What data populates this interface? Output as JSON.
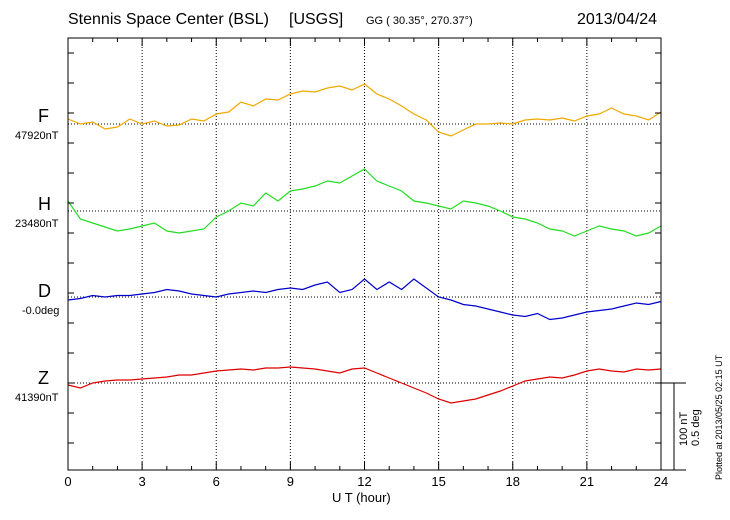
{
  "header": {
    "station": "Stennis Space Center (BSL)",
    "network": "[USGS]",
    "coords": "GG ( 30.35°, 270.37°)",
    "date": "2013/04/24"
  },
  "plotted_at": "Plotted at 2013/05/25 02:15 UT",
  "scale": {
    "line1": "100 nT",
    "line2": "0.5 deg"
  },
  "colors": {
    "F": "#f0a800",
    "H": "#22dd22",
    "D": "#0000cc",
    "Z": "#dd0000"
  },
  "chart_data": {
    "type": "line",
    "xlabel": "U T (hour)",
    "xlim": [
      0,
      24
    ],
    "xticks": [
      "0",
      "3",
      "6",
      "9",
      "12",
      "15",
      "18",
      "21",
      "24"
    ],
    "grid": true,
    "scale_bar": "100 nT / 0.5 deg",
    "series": [
      {
        "name": "F",
        "baseline_label": "47920nT",
        "x": [
          0,
          0.5,
          1,
          1.5,
          2,
          2.5,
          3,
          3.5,
          4,
          4.5,
          5,
          5.5,
          6,
          6.5,
          7,
          7.5,
          8,
          8.5,
          9,
          9.5,
          10,
          10.5,
          11,
          11.5,
          12,
          12.5,
          13,
          13.5,
          14,
          14.5,
          15,
          15.5,
          16,
          16.5,
          17,
          17.5,
          18,
          18.5,
          19,
          19.5,
          20,
          20.5,
          21,
          21.5,
          22,
          22.5,
          23,
          23.5,
          24
        ],
        "y": [
          5,
          0,
          2,
          -5,
          -3,
          5,
          0,
          3,
          -2,
          -1,
          5,
          3,
          10,
          12,
          22,
          18,
          25,
          24,
          30,
          33,
          32,
          36,
          38,
          34,
          40,
          30,
          25,
          18,
          10,
          4,
          -8,
          -12,
          -6,
          0,
          0,
          1,
          0,
          4,
          5,
          4,
          6,
          3,
          8,
          10,
          16,
          10,
          8,
          4,
          12
        ]
      },
      {
        "name": "H",
        "baseline_label": "23480nT",
        "x": [
          0,
          0.5,
          1,
          1.5,
          2,
          2.5,
          3,
          3.5,
          4,
          4.5,
          5,
          5.5,
          6,
          6.5,
          7,
          7.5,
          8,
          8.5,
          9,
          9.5,
          10,
          10.5,
          11,
          11.5,
          12,
          12.5,
          13,
          13.5,
          14,
          14.5,
          15,
          15.5,
          16,
          16.5,
          17,
          17.5,
          18,
          18.5,
          19,
          19.5,
          20,
          20.5,
          21,
          21.5,
          22,
          22.5,
          23,
          23.5,
          24
        ],
        "y": [
          10,
          -8,
          -12,
          -16,
          -20,
          -18,
          -15,
          -12,
          -20,
          -22,
          -20,
          -18,
          -6,
          0,
          8,
          5,
          18,
          10,
          20,
          22,
          25,
          30,
          28,
          35,
          42,
          30,
          25,
          20,
          10,
          8,
          5,
          2,
          10,
          8,
          5,
          0,
          -6,
          -8,
          -12,
          -18,
          -20,
          -25,
          -20,
          -15,
          -18,
          -20,
          -25,
          -22,
          -15
        ]
      },
      {
        "name": "D",
        "baseline_label": "-0.0deg",
        "x": [
          0,
          0.5,
          1,
          1.5,
          2,
          2.5,
          3,
          3.5,
          4,
          4.5,
          5,
          5.5,
          6,
          6.5,
          7,
          7.5,
          8,
          8.5,
          9,
          9.5,
          10,
          10.5,
          11,
          11.5,
          12,
          12.5,
          13,
          13.5,
          14,
          14.5,
          15,
          15.5,
          16,
          16.5,
          17,
          17.5,
          18,
          18.5,
          19,
          19.5,
          20,
          20.5,
          21,
          21.5,
          22,
          22.5,
          23,
          23.5,
          24
        ],
        "y": [
          -0.02,
          -0.01,
          0.01,
          0.0,
          0.01,
          0.01,
          0.02,
          0.03,
          0.05,
          0.04,
          0.02,
          0.01,
          0.0,
          0.02,
          0.03,
          0.04,
          0.03,
          0.05,
          0.06,
          0.05,
          0.08,
          0.1,
          0.03,
          0.05,
          0.12,
          0.05,
          0.1,
          0.05,
          0.12,
          0.06,
          0.0,
          -0.02,
          -0.05,
          -0.06,
          -0.08,
          -0.1,
          -0.12,
          -0.13,
          -0.11,
          -0.15,
          -0.14,
          -0.12,
          -0.1,
          -0.09,
          -0.08,
          -0.06,
          -0.04,
          -0.05,
          -0.03
        ]
      },
      {
        "name": "Z",
        "baseline_label": "41390nT",
        "x": [
          0,
          0.5,
          1,
          1.5,
          2,
          2.5,
          3,
          3.5,
          4,
          4.5,
          5,
          5.5,
          6,
          6.5,
          7,
          7.5,
          8,
          8.5,
          9,
          9.5,
          10,
          10.5,
          11,
          11.5,
          12,
          12.5,
          13,
          13.5,
          14,
          14.5,
          15,
          15.5,
          16,
          16.5,
          17,
          17.5,
          18,
          18.5,
          19,
          19.5,
          20,
          20.5,
          21,
          21.5,
          22,
          22.5,
          23,
          23.5,
          24
        ],
        "y": [
          -2,
          -5,
          0,
          2,
          3,
          3,
          4,
          5,
          6,
          8,
          8,
          10,
          12,
          13,
          14,
          13,
          15,
          15,
          16,
          15,
          14,
          12,
          10,
          14,
          15,
          10,
          5,
          0,
          -5,
          -10,
          -16,
          -20,
          -18,
          -16,
          -12,
          -8,
          -3,
          2,
          4,
          6,
          5,
          8,
          12,
          14,
          12,
          11,
          14,
          13,
          14
        ]
      }
    ]
  }
}
